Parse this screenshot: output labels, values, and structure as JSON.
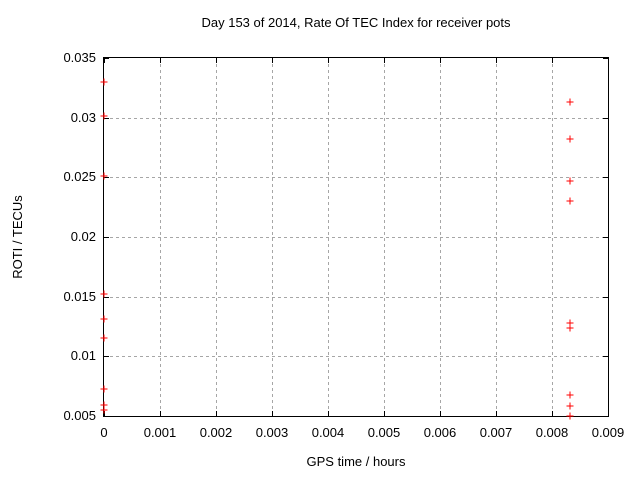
{
  "chart_data": {
    "type": "scatter",
    "title": "Day 153 of 2014, Rate Of TEC Index for receiver pots",
    "xlabel": "GPS time / hours",
    "ylabel": "ROTI / TECUs",
    "xlim": [
      0,
      0.009
    ],
    "ylim": [
      0.005,
      0.035
    ],
    "x_ticks": [
      "0",
      "0.001",
      "0.002",
      "0.003",
      "0.004",
      "0.005",
      "0.006",
      "0.007",
      "0.008",
      "0.009"
    ],
    "y_ticks": [
      "0.005",
      "0.01",
      "0.015",
      "0.02",
      "0.025",
      "0.03",
      "0.035"
    ],
    "grid": true,
    "legend": "none",
    "marker": "plus",
    "marker_color": "#ff0000",
    "grid_color": "#a6a6a6",
    "axis_color": "#000000",
    "background_color": "#ffffff",
    "series": [
      {
        "name": "ROTI",
        "points": [
          [
            0,
            0.033
          ],
          [
            0,
            0.0301
          ],
          [
            0,
            0.0251
          ],
          [
            0,
            0.0152
          ],
          [
            0,
            0.0131
          ],
          [
            0,
            0.0115
          ],
          [
            0,
            0.0073
          ],
          [
            0,
            0.0059
          ],
          [
            0,
            0.0055
          ],
          [
            0.00833,
            0.0313
          ],
          [
            0.00833,
            0.0282
          ],
          [
            0.00833,
            0.0247
          ],
          [
            0.00833,
            0.023
          ],
          [
            0.00833,
            0.0128
          ],
          [
            0.00833,
            0.0124
          ],
          [
            0.00833,
            0.0068
          ],
          [
            0.00833,
            0.0058
          ],
          [
            0.00833,
            0.005
          ]
        ]
      }
    ]
  }
}
